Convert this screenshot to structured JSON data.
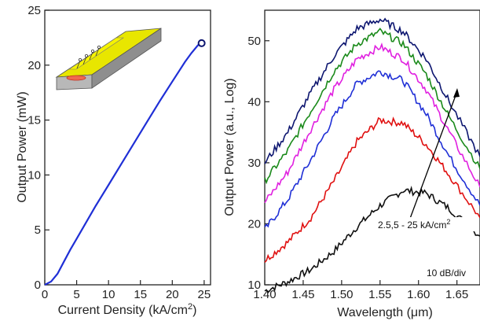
{
  "chart_data": [
    {
      "type": "line",
      "xlabel": "Current Density (kA/cm",
      "xlabel_sup": "2",
      "xlabel_end": ")",
      "ylabel": "Output Power (mW)",
      "xlim": [
        0,
        26
      ],
      "ylim": [
        0,
        25
      ],
      "xticks": [
        0,
        5,
        10,
        15,
        20,
        25
      ],
      "yticks": [
        0,
        5,
        10,
        15,
        20,
        25
      ],
      "series": [
        {
          "color": "#1f2fd6",
          "x": [
            0,
            1,
            2,
            3,
            4,
            5,
            6,
            8,
            10,
            12,
            14,
            16,
            18,
            20,
            21,
            22,
            23,
            24,
            24.6
          ],
          "y": [
            0,
            0.3,
            1.0,
            2.1,
            3.2,
            4.2,
            5.2,
            7.2,
            9.1,
            11.0,
            12.9,
            14.8,
            16.7,
            18.5,
            19.4,
            20.3,
            21.1,
            21.8,
            22.1
          ]
        }
      ],
      "endpoint_marker": {
        "x": 24.6,
        "y": 22.0
      },
      "inset": "laser-device-schematic"
    },
    {
      "type": "line",
      "xlabel": "Wavelength (",
      "xlabel_mu": "μ",
      "xlabel_end": "m)",
      "ylabel": "Output Power (a.u., Log)",
      "xlim": [
        1.4,
        1.68
      ],
      "ylim": [
        10,
        55
      ],
      "xticks": [
        1.4,
        1.45,
        1.5,
        1.55,
        1.6,
        1.65
      ],
      "xtick_labels": [
        "1.40",
        "1.45",
        "1.50",
        "1.55",
        "1.60",
        "1.65"
      ],
      "yticks": [
        10,
        20,
        30,
        40,
        50
      ],
      "annotation": "2.5,5 - 25 kA/cm",
      "annotation_sup": "2",
      "scale_note": "10 dB/div",
      "x": [
        1.4,
        1.43,
        1.46,
        1.49,
        1.52,
        1.55,
        1.58,
        1.61,
        1.64,
        1.68
      ],
      "series": [
        {
          "color": "#111111",
          "values": [
            9.0,
            10.5,
            12.5,
            15.5,
            19.5,
            23.0,
            25.5,
            25.0,
            22.5,
            18.0
          ]
        },
        {
          "color": "#e01010",
          "values": [
            14.0,
            17.0,
            21.0,
            27.0,
            33.5,
            37.0,
            36.5,
            33.0,
            28.0,
            21.0
          ]
        },
        {
          "color": "#1f2fd6",
          "values": [
            19.0,
            24.0,
            30.5,
            37.5,
            43.0,
            45.0,
            43.5,
            38.0,
            31.0,
            23.0
          ]
        },
        {
          "color": "#e020e0",
          "values": [
            23.5,
            28.5,
            35.5,
            42.0,
            47.0,
            49.0,
            47.0,
            42.0,
            35.0,
            26.0
          ]
        },
        {
          "color": "#1a8a1a",
          "values": [
            27.0,
            32.0,
            38.5,
            45.0,
            49.5,
            51.5,
            49.5,
            44.5,
            37.5,
            29.0
          ]
        },
        {
          "color": "#0d1670",
          "values": [
            30.0,
            35.0,
            41.5,
            47.5,
            52.0,
            53.5,
            51.5,
            47.0,
            40.0,
            31.0
          ]
        }
      ]
    }
  ]
}
